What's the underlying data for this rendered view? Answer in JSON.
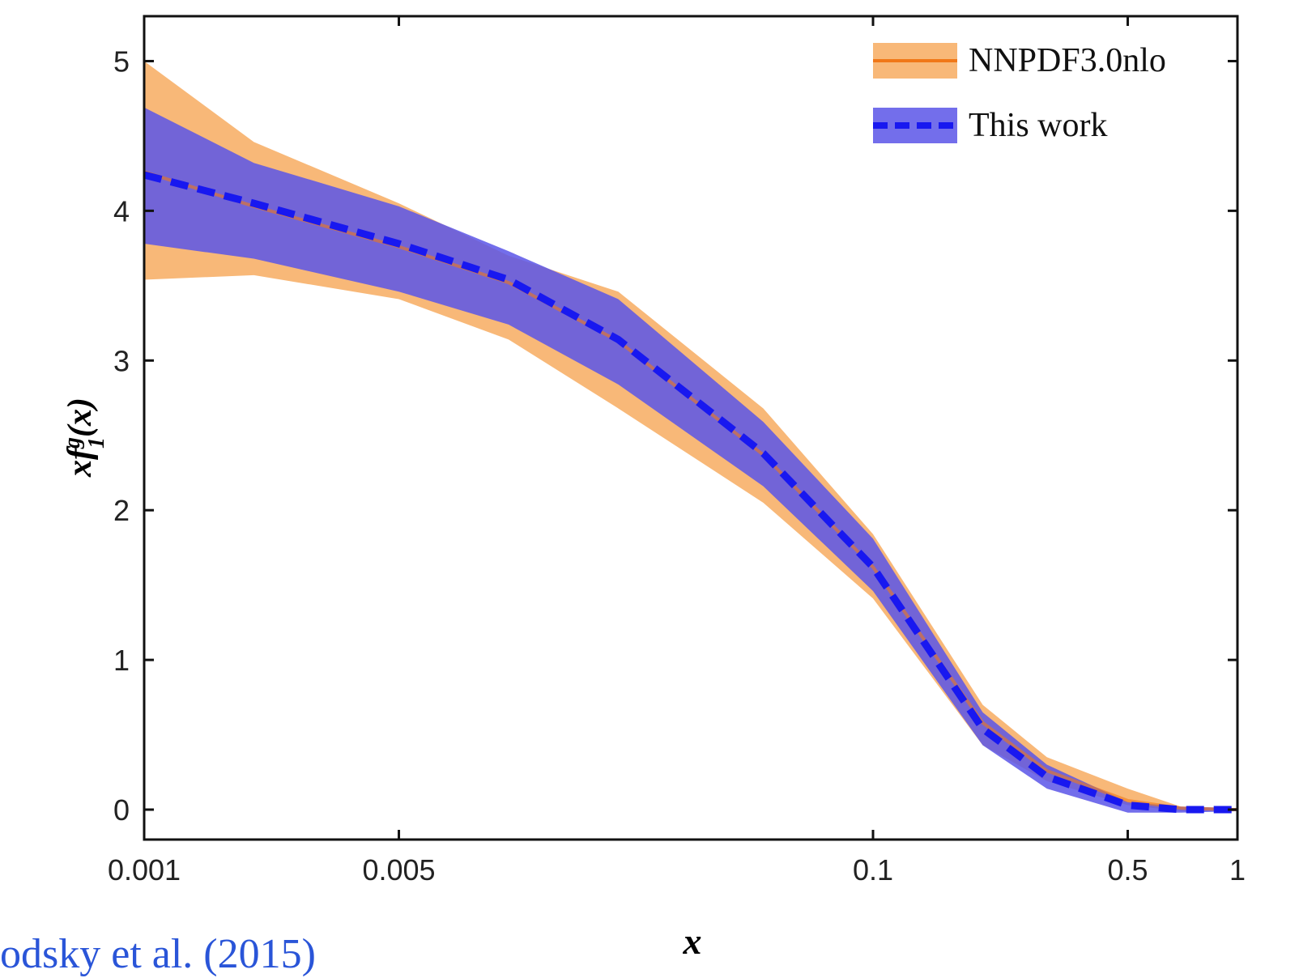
{
  "chart_data": {
    "type": "band-line",
    "x_label": "x",
    "y_label": {
      "base": "xf",
      "sub": "1",
      "sup": "g",
      "tail": "(x)"
    },
    "annotation": "odsky et al. (2015)",
    "x_scale": "log",
    "xlim": [
      0.001,
      1
    ],
    "xticks": [
      0.001,
      0.005,
      0.1,
      0.5,
      1
    ],
    "ylim": [
      -0.2,
      5.3
    ],
    "yticks": [
      0,
      1,
      2,
      3,
      4,
      5
    ],
    "legend": "top-right",
    "x": [
      0.001,
      0.002,
      0.005,
      0.01,
      0.02,
      0.05,
      0.1,
      0.2,
      0.3,
      0.5,
      0.7,
      1
    ],
    "series": [
      {
        "name": "NNPDF3.0nlo",
        "color": "#f07818",
        "band_color": "#f8b878",
        "dashed": false,
        "values": [
          4.26,
          4.03,
          3.76,
          3.52,
          3.13,
          2.37,
          1.62,
          0.58,
          0.26,
          0.06,
          0.01,
          0.0
        ],
        "upper": [
          5.0,
          4.46,
          4.05,
          3.7,
          3.46,
          2.68,
          1.84,
          0.7,
          0.35,
          0.14,
          0.02,
          0.01
        ],
        "lower": [
          3.54,
          3.57,
          3.41,
          3.14,
          2.68,
          2.05,
          1.41,
          0.43,
          0.19,
          0.03,
          -0.01,
          -0.01
        ]
      },
      {
        "name": "This work",
        "color": "#1818f0",
        "band_color": "#5a55e8",
        "dashed": true,
        "values": [
          4.24,
          4.05,
          3.78,
          3.54,
          3.14,
          2.38,
          1.62,
          0.54,
          0.22,
          0.03,
          0.0,
          0.0
        ],
        "upper": [
          4.69,
          4.32,
          4.03,
          3.73,
          3.41,
          2.59,
          1.81,
          0.65,
          0.3,
          0.05,
          0.02,
          0.01
        ],
        "lower": [
          3.78,
          3.68,
          3.46,
          3.24,
          2.84,
          2.16,
          1.46,
          0.43,
          0.14,
          -0.02,
          -0.02,
          -0.01
        ]
      }
    ]
  }
}
